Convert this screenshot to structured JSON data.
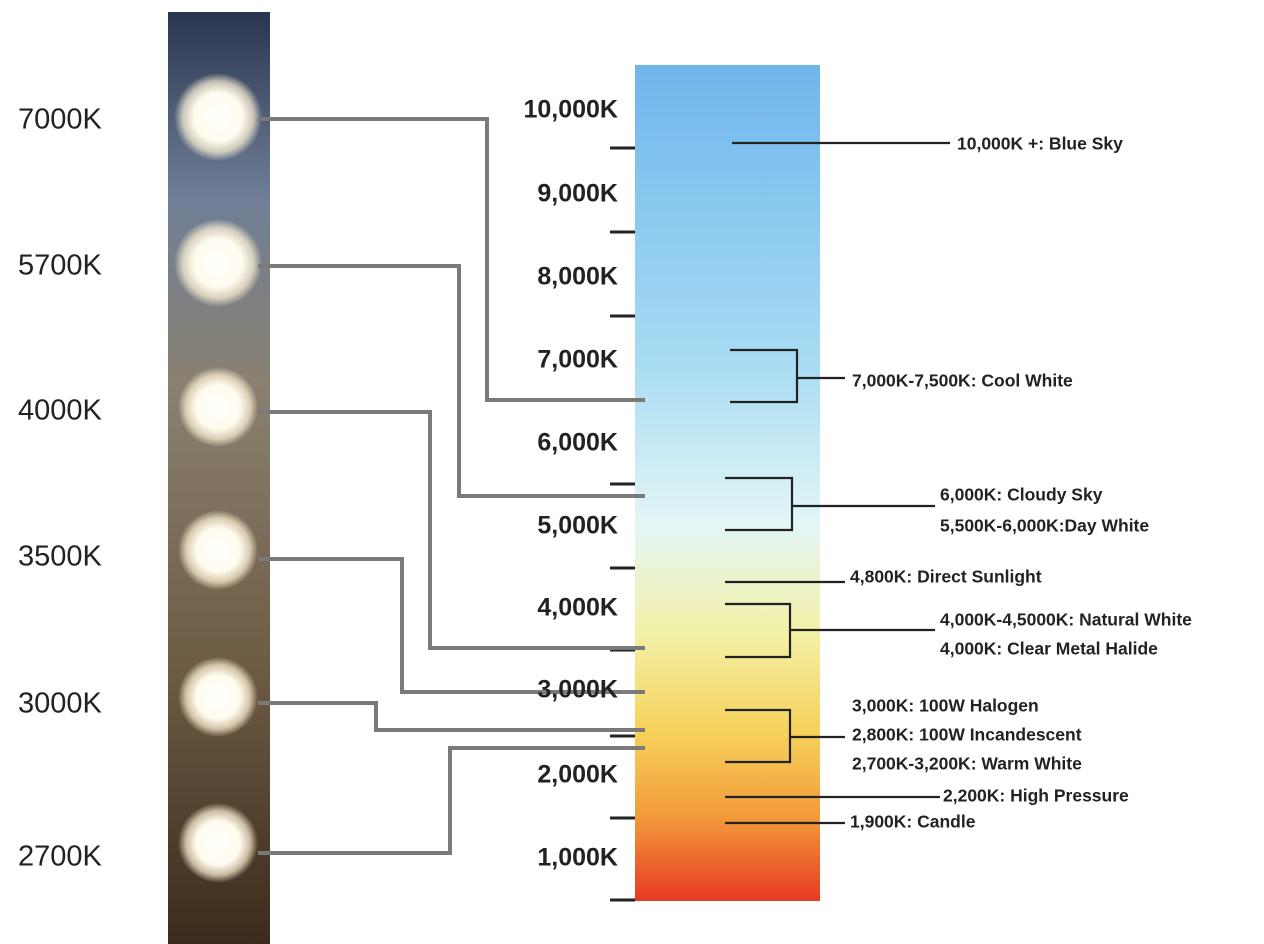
{
  "led_labels": [
    "7000K",
    "5700K",
    "4000K",
    "3500K",
    "3000K",
    "2700K"
  ],
  "scale_labels": [
    "10,000K",
    "9,000K",
    "8,000K",
    "7,000K",
    "6,000K",
    "5,000K",
    "4,000K",
    "3,000K",
    "2,000K",
    "1,000K"
  ],
  "annotations": [
    [
      "10,000K +: Blue Sky"
    ],
    [
      "7,000K-7,500K: Cool White"
    ],
    [
      "6,000K: Cloudy Sky",
      "5,500K-6,000K:Day White"
    ],
    [
      "4,800K: Direct Sunlight"
    ],
    [
      "4,000K-4,5000K: Natural White",
      "4,000K: Clear Metal Halide"
    ],
    [
      "3,000K: 100W Halogen",
      "2,800K: 100W Incandescent",
      "2,700K-3,200K: Warm White"
    ],
    [
      "2,200K: High Pressure"
    ],
    [
      "1,900K: Candle"
    ]
  ]
}
